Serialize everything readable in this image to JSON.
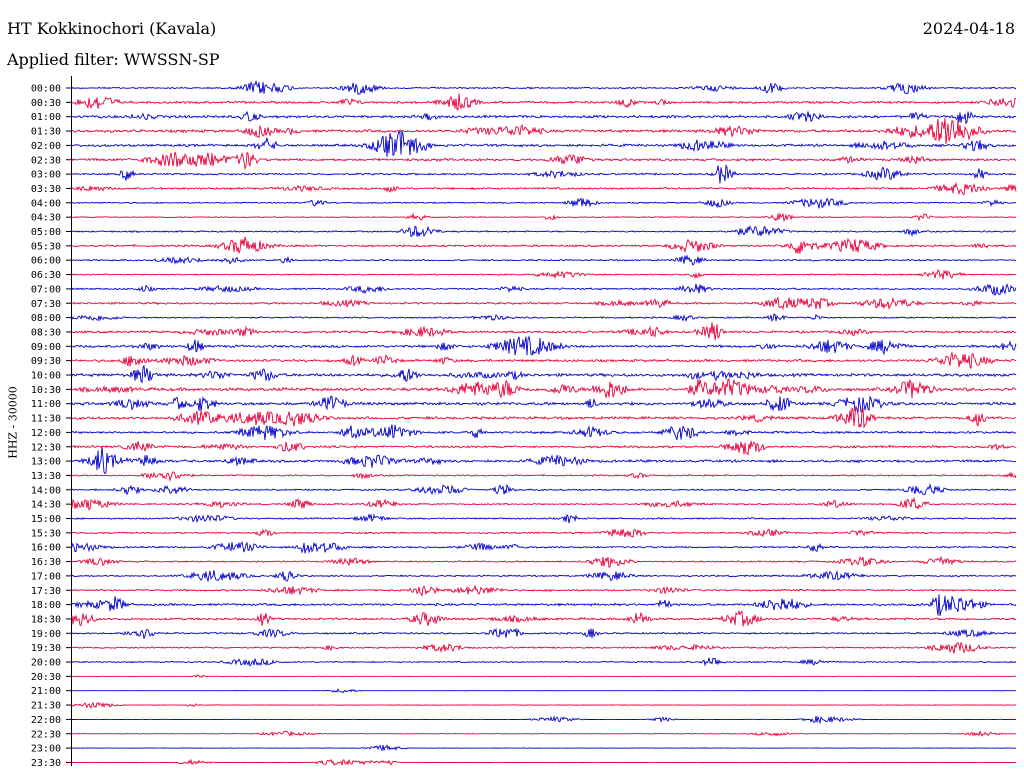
{
  "header": {
    "station": "HT Kokkinochori (Kavala)",
    "date": "2024-04-18",
    "filter": "Applied filter: WWSSN-SP"
  },
  "axis": {
    "channel_label": "HHZ - 30000"
  },
  "colors": {
    "even_trace": "#0000cc",
    "odd_trace": "#e8003a"
  },
  "chart_data": {
    "type": "line",
    "title": "HT Kokkinochori (Kavala)",
    "ylabel": "HHZ - 30000",
    "rows": [
      {
        "time": "00:00",
        "color": "blue"
      },
      {
        "time": "00:30",
        "color": "red"
      },
      {
        "time": "01:00",
        "color": "blue"
      },
      {
        "time": "01:30",
        "color": "red"
      },
      {
        "time": "02:00",
        "color": "blue"
      },
      {
        "time": "02:30",
        "color": "red"
      },
      {
        "time": "03:00",
        "color": "blue"
      },
      {
        "time": "03:30",
        "color": "red"
      },
      {
        "time": "04:00",
        "color": "blue"
      },
      {
        "time": "04:30",
        "color": "red"
      },
      {
        "time": "05:00",
        "color": "blue"
      },
      {
        "time": "05:30",
        "color": "red"
      },
      {
        "time": "06:00",
        "color": "blue"
      },
      {
        "time": "06:30",
        "color": "red"
      },
      {
        "time": "07:00",
        "color": "blue"
      },
      {
        "time": "07:30",
        "color": "red"
      },
      {
        "time": "08:00",
        "color": "blue"
      },
      {
        "time": "08:30",
        "color": "red"
      },
      {
        "time": "09:00",
        "color": "blue"
      },
      {
        "time": "09:30",
        "color": "red"
      },
      {
        "time": "10:00",
        "color": "blue"
      },
      {
        "time": "10:30",
        "color": "red"
      },
      {
        "time": "11:00",
        "color": "blue"
      },
      {
        "time": "11:30",
        "color": "red"
      },
      {
        "time": "12:00",
        "color": "blue"
      },
      {
        "time": "12:30",
        "color": "red"
      },
      {
        "time": "13:00",
        "color": "blue"
      },
      {
        "time": "13:30",
        "color": "red"
      },
      {
        "time": "14:00",
        "color": "blue"
      },
      {
        "time": "14:30",
        "color": "red"
      },
      {
        "time": "15:00",
        "color": "blue"
      },
      {
        "time": "15:30",
        "color": "red"
      },
      {
        "time": "16:00",
        "color": "blue"
      },
      {
        "time": "16:30",
        "color": "red"
      },
      {
        "time": "17:00",
        "color": "blue"
      },
      {
        "time": "17:30",
        "color": "red"
      },
      {
        "time": "18:00",
        "color": "blue"
      },
      {
        "time": "18:30",
        "color": "red"
      },
      {
        "time": "19:00",
        "color": "blue"
      },
      {
        "time": "19:30",
        "color": "red"
      },
      {
        "time": "20:00",
        "color": "blue"
      },
      {
        "time": "20:30",
        "color": "red"
      },
      {
        "time": "21:00",
        "color": "blue"
      },
      {
        "time": "21:30",
        "color": "red"
      },
      {
        "time": "22:00",
        "color": "blue"
      },
      {
        "time": "22:30",
        "color": "red"
      },
      {
        "time": "23:00",
        "color": "blue"
      },
      {
        "time": "23:30",
        "color": "red"
      }
    ]
  }
}
